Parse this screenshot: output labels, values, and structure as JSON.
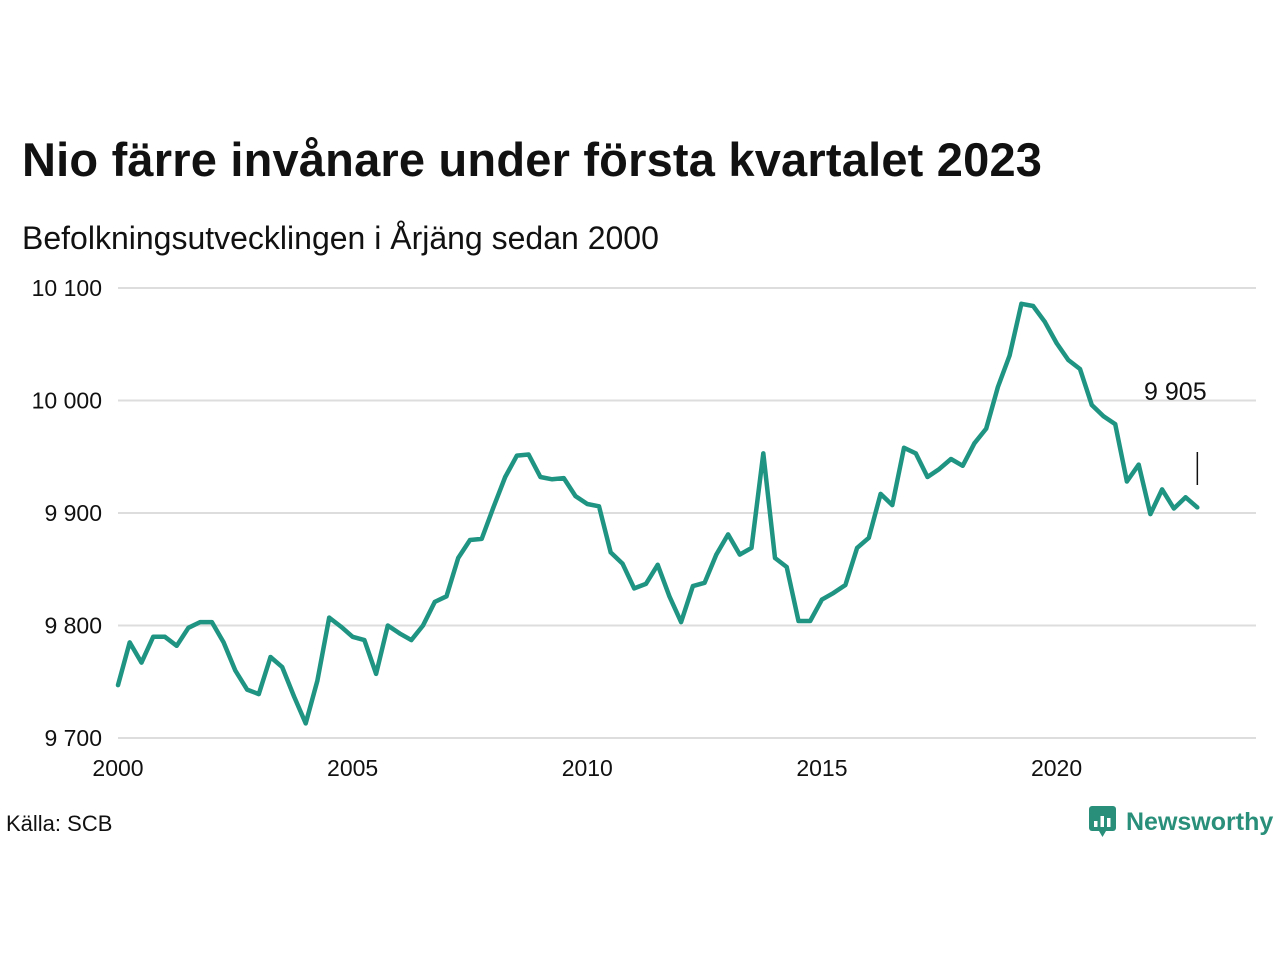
{
  "title": "Nio färre invånare under första kvartalet 2023",
  "subtitle": "Befolkningsutvecklingen i Årjäng sedan 2000",
  "source": "Källa: SCB",
  "brand": "Newsworthy",
  "colors": {
    "line": "#1f9483",
    "grid": "#dddddd",
    "brand": "#2a8f7a"
  },
  "chart_data": {
    "type": "line",
    "title": "Nio färre invånare under första kvartalet 2023",
    "subtitle": "Befolkningsutvecklingen i Årjäng sedan 2000",
    "xlabel": "",
    "ylabel": "",
    "xlim": [
      2000,
      2024.25
    ],
    "ylim": [
      9700,
      10100
    ],
    "x_ticks": [
      2000,
      2005,
      2010,
      2015,
      2020
    ],
    "x_tick_labels": [
      "2000",
      "2005",
      "2010",
      "2015",
      "2020"
    ],
    "y_ticks": [
      9700,
      9800,
      9900,
      10000,
      10100
    ],
    "y_tick_labels": [
      "9 700",
      "9 800",
      "9 900",
      "10 000",
      "10 100"
    ],
    "grid": true,
    "annotation": {
      "text": "9 905",
      "x": 2023.0,
      "y": 9905
    },
    "x": [
      2000.0,
      2000.25,
      2000.5,
      2000.75,
      2001.0,
      2001.25,
      2001.5,
      2001.75,
      2002.0,
      2002.25,
      2002.5,
      2002.75,
      2003.0,
      2003.25,
      2003.5,
      2003.75,
      2004.0,
      2004.25,
      2004.5,
      2004.75,
      2005.0,
      2005.25,
      2005.5,
      2005.75,
      2006.0,
      2006.25,
      2006.5,
      2006.75,
      2007.0,
      2007.25,
      2007.5,
      2007.75,
      2008.0,
      2008.25,
      2008.5,
      2008.75,
      2009.0,
      2009.25,
      2009.5,
      2009.75,
      2010.0,
      2010.25,
      2010.5,
      2010.75,
      2011.0,
      2011.25,
      2011.5,
      2011.75,
      2012.0,
      2012.25,
      2012.5,
      2012.75,
      2013.0,
      2013.25,
      2013.5,
      2013.75,
      2014.0,
      2014.25,
      2014.5,
      2014.75,
      2015.0,
      2015.25,
      2015.5,
      2015.75,
      2016.0,
      2016.25,
      2016.5,
      2016.75,
      2017.0,
      2017.25,
      2017.5,
      2017.75,
      2018.0,
      2018.25,
      2018.5,
      2018.75,
      2019.0,
      2019.25,
      2019.5,
      2019.75,
      2020.0,
      2020.25,
      2020.5,
      2020.75,
      2021.0,
      2021.25,
      2021.5,
      2021.75,
      2022.0,
      2022.25,
      2022.5,
      2022.75,
      2023.0
    ],
    "series": [
      {
        "name": "",
        "values": [
          9747,
          9785,
          9767,
          9790,
          9790,
          9782,
          9798,
          9803,
          9803,
          9785,
          9760,
          9743,
          9739,
          9772,
          9763,
          9737,
          9713,
          9751,
          9807,
          9799,
          9790,
          9787,
          9757,
          9800,
          9793,
          9787,
          9800,
          9821,
          9826,
          9860,
          9876,
          9877,
          9905,
          9932,
          9951,
          9952,
          9932,
          9930,
          9931,
          9915,
          9908,
          9906,
          9865,
          9855,
          9833,
          9837,
          9854,
          9826,
          9803,
          9835,
          9838,
          9863,
          9881,
          9863,
          9869,
          9953,
          9860,
          9852,
          9804,
          9804,
          9823,
          9829,
          9836,
          9869,
          9878,
          9917,
          9907,
          9958,
          9953,
          9932,
          9939,
          9948,
          9942,
          9962,
          9975,
          10012,
          10040,
          10086,
          10084,
          10070,
          10051,
          10036,
          10028,
          9996,
          9986,
          9979,
          9928,
          9943,
          9899,
          9921,
          9904,
          9914,
          9905
        ]
      }
    ]
  }
}
